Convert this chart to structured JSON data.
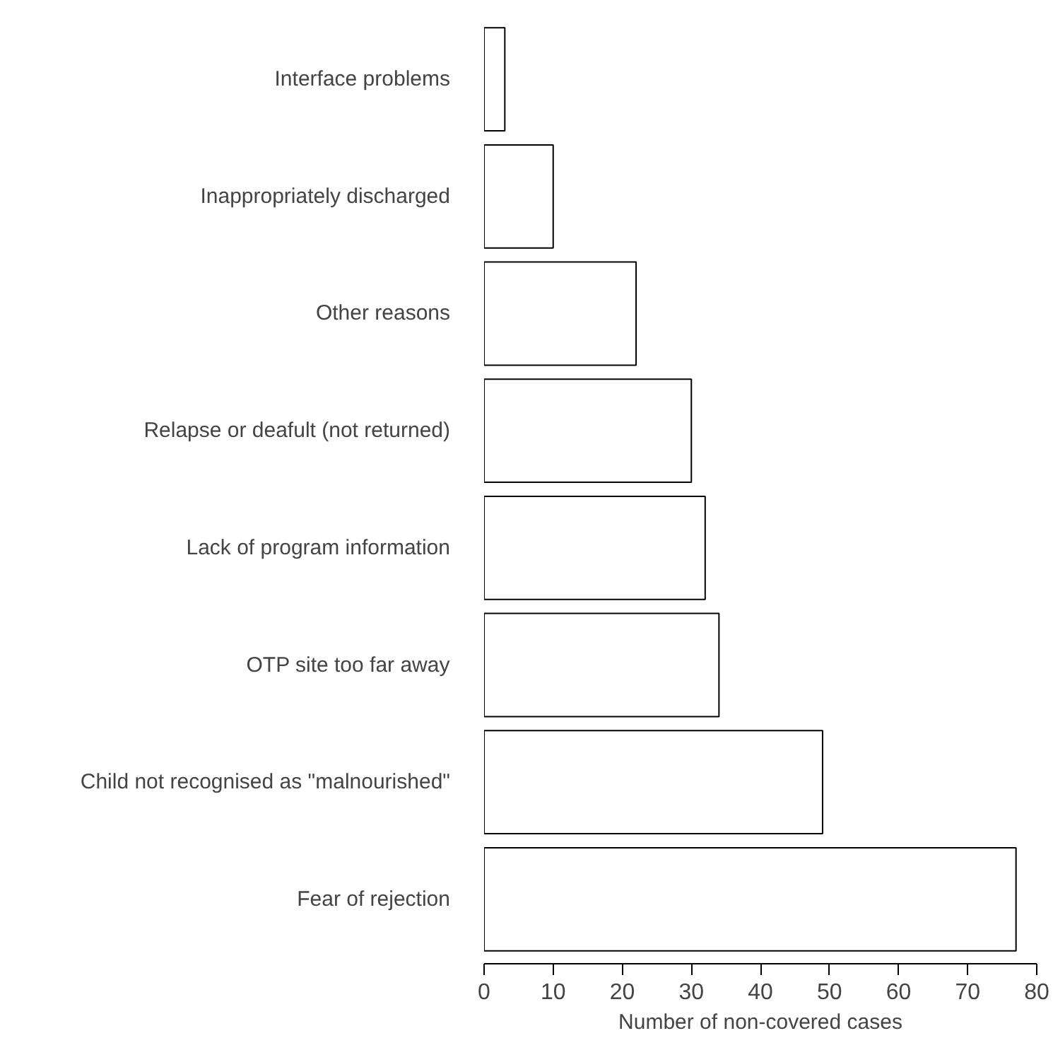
{
  "chart_data": {
    "type": "bar",
    "orientation": "horizontal",
    "xlabel": "Number of non-covered cases",
    "categories": [
      "Interface problems",
      "Inappropriately discharged",
      "Other reasons",
      "Relapse or deafult (not returned)",
      "Lack of program information",
      "OTP site too far away",
      "Child not recognised as \"malnourished\"",
      "Fear of rejection"
    ],
    "values": [
      3,
      10,
      22,
      30,
      32,
      34,
      49,
      77
    ],
    "color": "#ffffff",
    "xlim": [
      0,
      80
    ],
    "xticks": [
      0,
      10,
      20,
      30,
      40,
      50,
      60,
      70,
      80
    ]
  }
}
